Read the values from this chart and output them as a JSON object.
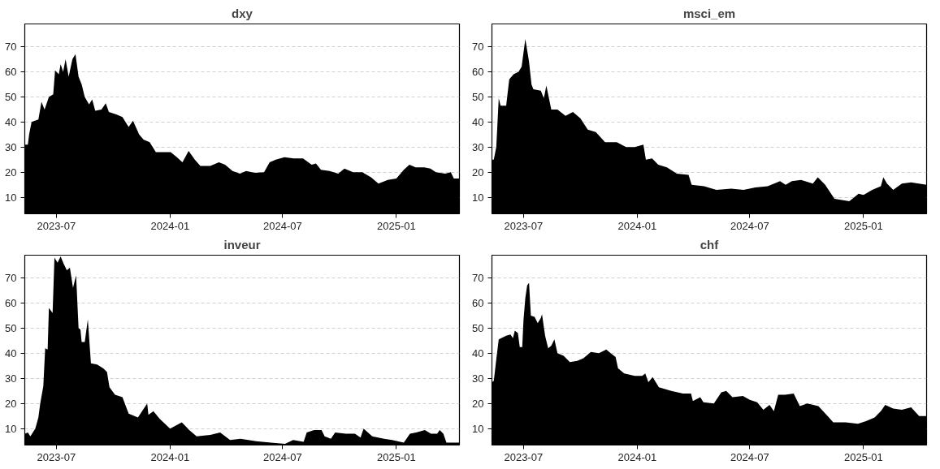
{
  "chart_data": [
    {
      "type": "area",
      "title": "dxy",
      "color": "#000000",
      "xlim": [
        "2023-05-11",
        "2025-04-13"
      ],
      "ylim": [
        3.5,
        79
      ],
      "xticks": [
        "2023-07",
        "2024-01",
        "2024-07",
        "2025-01"
      ],
      "yticks": [
        10,
        20,
        30,
        40,
        50,
        60,
        70
      ],
      "grid": "y",
      "x": [
        "2023-05-11",
        "2023-05-16",
        "2023-05-18",
        "2023-05-22",
        "2023-06-02",
        "2023-06-07",
        "2023-06-12",
        "2023-06-19",
        "2023-06-26",
        "2023-06-29",
        "2023-07-05",
        "2023-07-08",
        "2023-07-12",
        "2023-07-16",
        "2023-07-21",
        "2023-07-27",
        "2023-08-01",
        "2023-08-06",
        "2023-08-11",
        "2023-08-16",
        "2023-08-23",
        "2023-08-28",
        "2023-09-02",
        "2023-09-12",
        "2023-09-19",
        "2023-09-24",
        "2023-10-06",
        "2023-10-16",
        "2023-10-26",
        "2023-11-02",
        "2023-11-12",
        "2023-11-19",
        "2023-11-29",
        "2023-12-09",
        "2024-01-02",
        "2024-01-12",
        "2024-01-21",
        "2024-01-31",
        "2024-02-10",
        "2024-02-19",
        "2024-03-06",
        "2024-03-20",
        "2024-03-30",
        "2024-04-11",
        "2024-04-23",
        "2024-05-03",
        "2024-05-17",
        "2024-06-01",
        "2024-06-10",
        "2024-06-20",
        "2024-07-04",
        "2024-07-19",
        "2024-08-03",
        "2024-08-17",
        "2024-08-24",
        "2024-09-01",
        "2024-09-15",
        "2024-09-29",
        "2024-10-09",
        "2024-10-23",
        "2024-11-07",
        "2024-11-21",
        "2024-12-03",
        "2024-12-18",
        "2025-01-01",
        "2025-01-13",
        "2025-01-22",
        "2025-02-01",
        "2025-02-15",
        "2025-02-25",
        "2025-03-06",
        "2025-03-21",
        "2025-03-30",
        "2025-04-04",
        "2025-04-13"
      ],
      "values": [
        31,
        31,
        35,
        40,
        41,
        48,
        45,
        50,
        51,
        60.5,
        59,
        63,
        60,
        65,
        58,
        65,
        67,
        58,
        55,
        50,
        47,
        49,
        44.5,
        45,
        47.5,
        44,
        43,
        42,
        38,
        40.5,
        35,
        33,
        32,
        28,
        28,
        26,
        24,
        28.5,
        25,
        22.5,
        22.5,
        24,
        23,
        20.5,
        19.5,
        20.5,
        19.8,
        20,
        24,
        25,
        26,
        25.5,
        25.5,
        23,
        23.5,
        21,
        20.5,
        19.5,
        21.5,
        20,
        20,
        18,
        15.5,
        17,
        17.5,
        21,
        23,
        22,
        22,
        21.5,
        20,
        19.5,
        20,
        17.5,
        17.5
      ]
    },
    {
      "type": "area",
      "title": "msci_em",
      "color": "#000000",
      "xlim": [
        "2023-05-11",
        "2025-04-13"
      ],
      "ylim": [
        3.5,
        79
      ],
      "xticks": [
        "2023-07",
        "2024-01",
        "2024-07",
        "2025-01"
      ],
      "yticks": [
        10,
        20,
        30,
        40,
        50,
        60,
        70
      ],
      "grid": "y",
      "x": [
        "2023-05-11",
        "2023-05-14",
        "2023-05-18",
        "2023-05-22",
        "2023-05-25",
        "2023-06-03",
        "2023-06-08",
        "2023-06-15",
        "2023-06-23",
        "2023-06-28",
        "2023-07-04",
        "2023-07-10",
        "2023-07-14",
        "2023-07-17",
        "2023-07-29",
        "2023-08-03",
        "2023-08-07",
        "2023-08-15",
        "2023-08-25",
        "2023-09-07",
        "2023-09-19",
        "2023-10-01",
        "2023-10-13",
        "2023-10-26",
        "2023-11-10",
        "2023-11-29",
        "2023-12-14",
        "2023-12-28",
        "2024-01-11",
        "2024-01-15",
        "2024-01-25",
        "2024-02-04",
        "2024-02-18",
        "2024-03-05",
        "2024-03-24",
        "2024-03-29",
        "2024-04-18",
        "2024-05-08",
        "2024-06-01",
        "2024-06-21",
        "2024-07-10",
        "2024-07-30",
        "2024-08-19",
        "2024-08-28",
        "2024-09-07",
        "2024-09-22",
        "2024-10-11",
        "2024-10-19",
        "2024-10-31",
        "2024-11-15",
        "2024-12-09",
        "2024-12-24",
        "2025-01-01",
        "2025-01-15",
        "2025-01-29",
        "2025-02-02",
        "2025-02-08",
        "2025-02-18",
        "2025-03-04",
        "2025-03-19",
        "2025-04-13"
      ],
      "values": [
        25,
        25,
        30,
        49.5,
        46.5,
        46.5,
        57,
        59,
        60,
        62,
        73,
        64,
        55,
        53,
        52.5,
        49.5,
        54.5,
        45,
        45,
        42.5,
        44,
        41.5,
        37,
        36,
        32,
        32,
        30,
        30,
        31,
        25,
        25.5,
        23,
        22,
        19.5,
        19,
        15,
        14.5,
        13,
        13.5,
        13,
        14,
        14.5,
        16.5,
        15,
        16.5,
        17,
        15.5,
        18,
        15,
        9.5,
        8.5,
        11.5,
        11,
        13,
        14.5,
        18,
        15.5,
        13,
        15.5,
        16,
        15
      ]
    },
    {
      "type": "area",
      "title": "inveur",
      "color": "#000000",
      "xlim": [
        "2023-05-11",
        "2025-04-13"
      ],
      "ylim": [
        3.5,
        79
      ],
      "xticks": [
        "2023-07",
        "2024-01",
        "2024-07",
        "2025-01"
      ],
      "yticks": [
        10,
        20,
        30,
        40,
        50,
        60,
        70
      ],
      "grid": "y",
      "x": [
        "2023-05-11",
        "2023-05-16",
        "2023-05-20",
        "2023-05-28",
        "2023-06-02",
        "2023-06-05",
        "2023-06-10",
        "2023-06-13",
        "2023-06-17",
        "2023-06-19",
        "2023-06-25",
        "2023-06-28",
        "2023-07-03",
        "2023-07-08",
        "2023-07-13",
        "2023-07-18",
        "2023-07-23",
        "2023-07-28",
        "2023-08-02",
        "2023-08-06",
        "2023-08-09",
        "2023-08-11",
        "2023-08-16",
        "2023-08-21",
        "2023-08-26",
        "2023-09-05",
        "2023-09-15",
        "2023-09-21",
        "2023-09-25",
        "2023-10-04",
        "2023-10-16",
        "2023-10-26",
        "2023-11-10",
        "2023-11-25",
        "2023-11-27",
        "2023-12-05",
        "2023-12-15",
        "2024-01-01",
        "2024-01-20",
        "2024-02-01",
        "2024-02-13",
        "2024-03-06",
        "2024-03-22",
        "2024-04-07",
        "2024-04-24",
        "2024-05-19",
        "2024-06-12",
        "2024-07-05",
        "2024-07-18",
        "2024-08-04",
        "2024-08-09",
        "2024-08-21",
        "2024-09-02",
        "2024-09-07",
        "2024-09-17",
        "2024-09-24",
        "2024-10-11",
        "2024-10-26",
        "2024-11-04",
        "2024-11-09",
        "2024-11-23",
        "2024-12-12",
        "2024-12-25",
        "2025-01-13",
        "2025-01-23",
        "2025-02-02",
        "2025-02-16",
        "2025-02-26",
        "2025-03-08",
        "2025-03-12",
        "2025-03-18",
        "2025-03-23",
        "2025-04-13"
      ],
      "values": [
        8,
        8.5,
        7,
        10,
        14.5,
        20,
        27,
        42,
        41.5,
        58,
        56,
        78,
        76,
        78.5,
        75.5,
        73,
        74,
        66,
        71,
        50,
        49.5,
        44.5,
        44.5,
        53.5,
        36,
        35.5,
        34,
        32.5,
        26.5,
        23.5,
        22.5,
        16,
        14.5,
        20,
        15.5,
        17,
        14,
        10,
        12.5,
        9.5,
        7,
        7.5,
        8.5,
        5.5,
        6,
        5,
        4.5,
        4,
        5.5,
        4.8,
        8.5,
        9.5,
        9.5,
        7,
        6,
        8.5,
        8,
        8,
        6.5,
        10,
        7,
        6,
        5.5,
        4.5,
        8,
        8.5,
        9.5,
        8,
        8,
        9.5,
        8,
        4.5,
        4.5
      ]
    },
    {
      "type": "area",
      "title": "chf",
      "color": "#000000",
      "xlim": [
        "2023-05-11",
        "2025-04-13"
      ],
      "ylim": [
        3.5,
        79
      ],
      "xticks": [
        "2023-07",
        "2024-01",
        "2024-07",
        "2025-01"
      ],
      "yticks": [
        10,
        20,
        30,
        40,
        50,
        60,
        70
      ],
      "grid": "y",
      "x": [
        "2023-05-11",
        "2023-05-14",
        "2023-05-18",
        "2023-05-22",
        "2023-06-03",
        "2023-06-10",
        "2023-06-14",
        "2023-06-17",
        "2023-06-22",
        "2023-06-25",
        "2023-06-29",
        "2023-07-01",
        "2023-07-04",
        "2023-07-07",
        "2023-07-10",
        "2023-07-13",
        "2023-07-19",
        "2023-07-24",
        "2023-07-29",
        "2023-07-31",
        "2023-08-05",
        "2023-08-10",
        "2023-08-15",
        "2023-08-20",
        "2023-08-25",
        "2023-09-04",
        "2023-09-14",
        "2023-09-26",
        "2023-10-06",
        "2023-10-18",
        "2023-10-31",
        "2023-11-12",
        "2023-11-19",
        "2023-11-27",
        "2023-12-01",
        "2023-12-11",
        "2023-12-28",
        "2024-01-09",
        "2024-01-14",
        "2024-01-19",
        "2024-01-26",
        "2024-02-05",
        "2024-02-25",
        "2024-03-15",
        "2024-03-28",
        "2024-03-31",
        "2024-04-12",
        "2024-04-17",
        "2024-05-04",
        "2024-05-16",
        "2024-05-24",
        "2024-06-03",
        "2024-06-20",
        "2024-07-01",
        "2024-07-13",
        "2024-07-23",
        "2024-08-02",
        "2024-08-09",
        "2024-08-16",
        "2024-08-27",
        "2024-09-10",
        "2024-09-20",
        "2024-10-02",
        "2024-10-20",
        "2024-11-04",
        "2024-11-13",
        "2024-12-03",
        "2024-12-23",
        "2025-01-05",
        "2025-01-19",
        "2025-01-29",
        "2025-02-05",
        "2025-02-18",
        "2025-03-04",
        "2025-03-19",
        "2025-04-01",
        "2025-04-13"
      ],
      "values": [
        28.5,
        29,
        37.5,
        45.5,
        47,
        47.5,
        46,
        49,
        48,
        42.5,
        42.5,
        53,
        62,
        67,
        68,
        55,
        54.5,
        52,
        54,
        55.5,
        47,
        42,
        43,
        45.5,
        40,
        39,
        36.5,
        37,
        38,
        40.5,
        40,
        41.5,
        40,
        38.5,
        34,
        32,
        31,
        31,
        32,
        28.5,
        30.5,
        26.5,
        25,
        24,
        24,
        21,
        22.5,
        20.5,
        20,
        24.5,
        25,
        22.5,
        23,
        21.5,
        20.5,
        17.5,
        19.5,
        17,
        23.5,
        23.5,
        24,
        19,
        20,
        19,
        15,
        12.5,
        12.5,
        12,
        13,
        14.5,
        17,
        19.5,
        18,
        17.5,
        18.5,
        15,
        15
      ]
    }
  ]
}
